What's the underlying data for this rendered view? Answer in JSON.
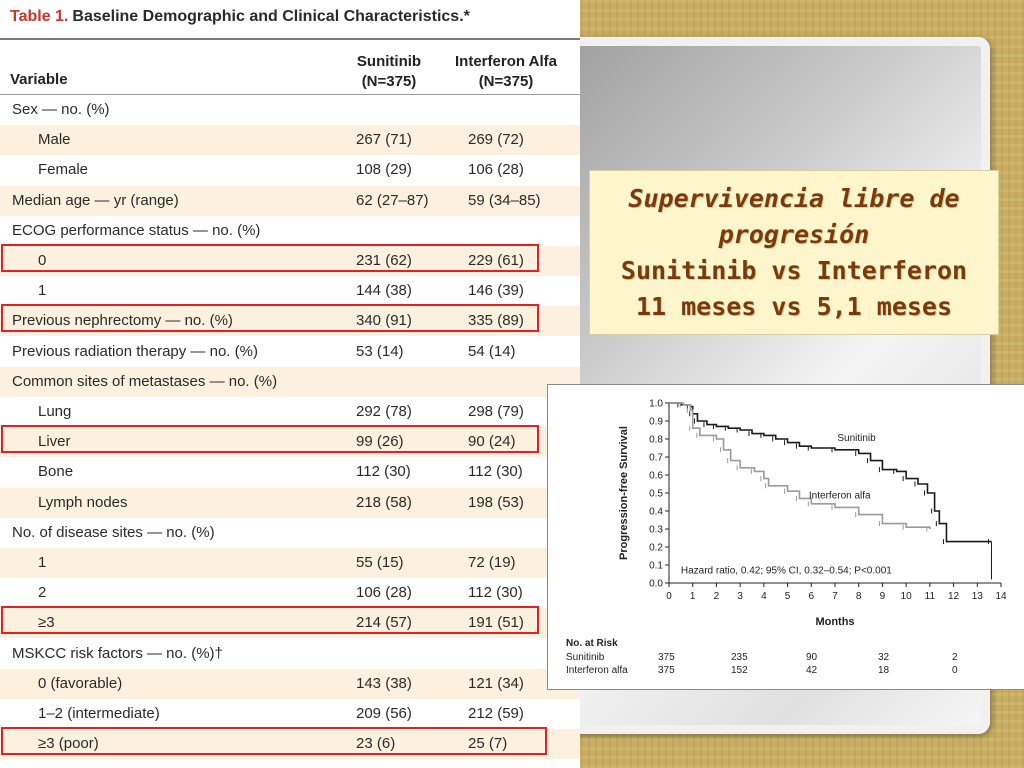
{
  "table": {
    "title_prefix": "Table 1.",
    "title_text": "Baseline Demographic and Clinical Characteristics.*",
    "col_variable": "Variable",
    "col_sunitinib": "Sunitinib",
    "col_sunitinib_n": "(N=375)",
    "col_interferon": "Interferon Alfa",
    "col_interferon_n": "(N=375)",
    "rows": [
      {
        "label": "Sex — no. (%)",
        "sun": "",
        "ifn": ""
      },
      {
        "label": "Male",
        "sun": "267 (71)",
        "ifn": "269 (72)"
      },
      {
        "label": "Female",
        "sun": "108 (29)",
        "ifn": "106 (28)"
      },
      {
        "label": "Median age — yr (range)",
        "sun": "62 (27–87)",
        "ifn": "59 (34–85)"
      },
      {
        "label": "ECOG performance status — no. (%)",
        "sun": "",
        "ifn": ""
      },
      {
        "label": "0",
        "sun": "231 (62)",
        "ifn": "229 (61)"
      },
      {
        "label": "1",
        "sun": "144 (38)",
        "ifn": "146 (39)"
      },
      {
        "label": "Previous nephrectomy — no. (%)",
        "sun": "340 (91)",
        "ifn": "335 (89)"
      },
      {
        "label": "Previous radiation therapy — no. (%)",
        "sun": "53 (14)",
        "ifn": "54 (14)"
      },
      {
        "label": "Common sites of metastases — no. (%)",
        "sun": "",
        "ifn": ""
      },
      {
        "label": "Lung",
        "sun": "292 (78)",
        "ifn": "298 (79)"
      },
      {
        "label": "Liver",
        "sun": "99 (26)",
        "ifn": "90 (24)"
      },
      {
        "label": "Bone",
        "sun": "112 (30)",
        "ifn": "112 (30)"
      },
      {
        "label": "Lymph nodes",
        "sun": "218 (58)",
        "ifn": "198 (53)"
      },
      {
        "label": "No. of disease sites — no. (%)",
        "sun": "",
        "ifn": ""
      },
      {
        "label": "1",
        "sun": "55 (15)",
        "ifn": "72 (19)"
      },
      {
        "label": "2",
        "sun": "106 (28)",
        "ifn": "112 (30)"
      },
      {
        "label": "≥3",
        "sun": "214 (57)",
        "ifn": "191 (51)"
      },
      {
        "label": "MSKCC risk factors — no. (%)†",
        "sun": "",
        "ifn": ""
      },
      {
        "label": "0 (favorable)",
        "sun": "143 (38)",
        "ifn": "121 (34)"
      },
      {
        "label": "1–2 (intermediate)",
        "sun": "209 (56)",
        "ifn": "212 (59)"
      },
      {
        "label": "≥3 (poor)",
        "sun": "23 (6)",
        "ifn": "25 (7)"
      }
    ]
  },
  "callout": {
    "line1": "Supervivencia libre de",
    "line2": "progresión",
    "line3": "Sunitinib vs Interferon",
    "line4": "11 meses vs 5,1 meses",
    "text_color": "#7a3a0c",
    "background": "#fdf6cc"
  },
  "highlight_color": "#e0212a",
  "chart_data": {
    "type": "line",
    "xlabel": "Months",
    "ylabel": "Progression-free Survival",
    "xlim": [
      0,
      14
    ],
    "ylim": [
      0.0,
      1.0
    ],
    "x_ticks": [
      0,
      1,
      2,
      3,
      4,
      5,
      6,
      7,
      8,
      9,
      10,
      11,
      12,
      13,
      14
    ],
    "y_ticks": [
      "0.0",
      "0.1",
      "0.2",
      "0.3",
      "0.4",
      "0.5",
      "0.6",
      "0.7",
      "0.8",
      "0.9",
      "1.0"
    ],
    "annotation": "Hazard ratio, 0.42; 95% CI, 0.32–0.54; P<0.001",
    "series": [
      {
        "name": "Sunitinib",
        "color": "#1a1a1a",
        "points": [
          [
            0,
            1.0
          ],
          [
            0.5,
            0.99
          ],
          [
            0.9,
            0.98
          ],
          [
            1.0,
            0.94
          ],
          [
            1.2,
            0.9
          ],
          [
            1.6,
            0.88
          ],
          [
            2.0,
            0.87
          ],
          [
            2.5,
            0.86
          ],
          [
            3.0,
            0.85
          ],
          [
            3.5,
            0.83
          ],
          [
            4.0,
            0.82
          ],
          [
            4.5,
            0.8
          ],
          [
            5.0,
            0.78
          ],
          [
            5.5,
            0.76
          ],
          [
            6.0,
            0.75
          ],
          [
            7.0,
            0.74
          ],
          [
            8.0,
            0.72
          ],
          [
            8.5,
            0.68
          ],
          [
            9.0,
            0.63
          ],
          [
            9.6,
            0.62
          ],
          [
            10.0,
            0.58
          ],
          [
            10.5,
            0.55
          ],
          [
            10.9,
            0.5
          ],
          [
            11.2,
            0.4
          ],
          [
            11.4,
            0.33
          ],
          [
            11.7,
            0.23
          ],
          [
            13.6,
            0.23
          ]
        ]
      },
      {
        "name": "Interferon alfa",
        "color": "#9a9a9a",
        "points": [
          [
            0,
            1.0
          ],
          [
            0.6,
            0.99
          ],
          [
            0.9,
            0.96
          ],
          [
            1.0,
            0.86
          ],
          [
            1.3,
            0.82
          ],
          [
            2.0,
            0.8
          ],
          [
            2.3,
            0.74
          ],
          [
            2.6,
            0.68
          ],
          [
            3.0,
            0.64
          ],
          [
            3.6,
            0.62
          ],
          [
            4.0,
            0.58
          ],
          [
            4.2,
            0.54
          ],
          [
            5.0,
            0.51
          ],
          [
            5.5,
            0.47
          ],
          [
            6.0,
            0.44
          ],
          [
            7.0,
            0.42
          ],
          [
            8.0,
            0.38
          ],
          [
            9.0,
            0.33
          ],
          [
            10.0,
            0.31
          ],
          [
            11.0,
            0.3
          ]
        ]
      }
    ],
    "risk_table": {
      "title": "No. at Risk",
      "rows": [
        {
          "name": "Sunitinib",
          "values": [
            "375",
            "235",
            "90",
            "32",
            "2"
          ]
        },
        {
          "name": "Interferon alfa",
          "values": [
            "375",
            "152",
            "42",
            "18",
            "0"
          ]
        }
      ]
    }
  }
}
